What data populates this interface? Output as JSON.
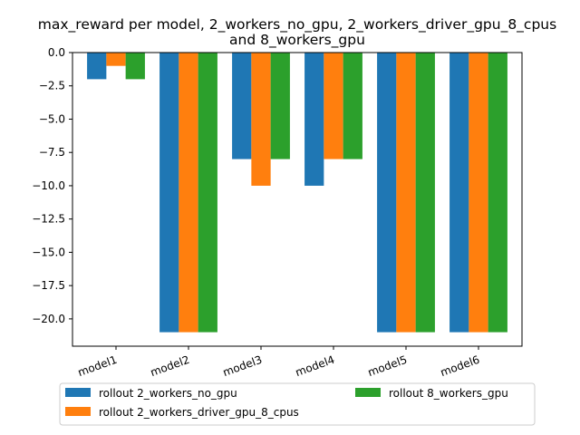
{
  "chart_data": {
    "type": "bar",
    "title": "max_reward per model, 2_workers_no_gpu, 2_workers_driver_gpu_8_cpus\nand 8_workers_gpu",
    "xlabel": "",
    "ylabel": "",
    "categories": [
      "model1",
      "model2",
      "model3",
      "model4",
      "model5",
      "model6"
    ],
    "series": [
      {
        "name": "rollout 2_workers_no_gpu",
        "color": "#1f77b4",
        "values": [
          -2,
          -21,
          -8,
          -10,
          -21,
          -21
        ]
      },
      {
        "name": "rollout 2_workers_driver_gpu_8_cpus",
        "color": "#ff7f0e",
        "values": [
          -1,
          -21,
          -10,
          -8,
          -21,
          -21
        ]
      },
      {
        "name": "rollout 8_workers_gpu",
        "color": "#2ca02c",
        "values": [
          -2,
          -21,
          -8,
          -8,
          -21,
          -21
        ]
      }
    ],
    "ylim": [
      -22.05,
      0
    ],
    "yticks": [
      0,
      -2.5,
      -5,
      -7.5,
      -10,
      -12.5,
      -15,
      -17.5,
      -20
    ],
    "ytick_labels": [
      "0.0",
      "−2.5",
      "−5.0",
      "−7.5",
      "−10.0",
      "−12.5",
      "−15.0",
      "−17.5",
      "−20.0"
    ],
    "legend_position": "bottom, outside plot area, 2 columns",
    "grid": false
  }
}
